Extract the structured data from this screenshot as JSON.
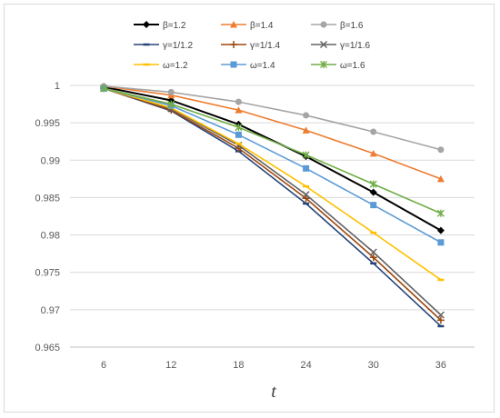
{
  "chart_data": {
    "type": "line",
    "title": "",
    "xlabel": "t",
    "ylabel": "",
    "x": [
      6,
      12,
      18,
      24,
      30,
      36
    ],
    "ylim": [
      0.965,
      1.0
    ],
    "yticks": [
      0.965,
      0.97,
      0.975,
      0.98,
      0.985,
      0.99,
      0.995,
      1
    ],
    "ytick_labels": [
      "0.965",
      "0.97",
      "0.975",
      "0.98",
      "0.985",
      "0.99",
      "0.995",
      "1"
    ],
    "grid": "horizontal",
    "legend_placement": "top",
    "series": [
      {
        "name": "β=1.2",
        "color": "#000000",
        "marker": "diamond",
        "values": [
          0.9998,
          0.998,
          0.9948,
          0.9905,
          0.9857,
          0.9806
        ]
      },
      {
        "name": "β=1.4",
        "color": "#ED7D31",
        "marker": "triangle",
        "values": [
          0.9999,
          0.9987,
          0.9967,
          0.994,
          0.9909,
          0.9875
        ]
      },
      {
        "name": "β=1.6",
        "color": "#A5A5A5",
        "marker": "circle",
        "values": [
          0.9999,
          0.9991,
          0.9978,
          0.996,
          0.9938,
          0.9914
        ]
      },
      {
        "name": "γ=1/1.2",
        "color": "#264478",
        "marker": "dash",
        "values": [
          0.9996,
          0.9966,
          0.9912,
          0.9842,
          0.9762,
          0.9678
        ]
      },
      {
        "name": "γ=1/1.4",
        "color": "#9E480E",
        "marker": "plus",
        "values": [
          0.9996,
          0.9967,
          0.9916,
          0.9849,
          0.977,
          0.9686
        ]
      },
      {
        "name": "γ=1/1.6",
        "color": "#636363",
        "marker": "x",
        "values": [
          0.9996,
          0.9969,
          0.992,
          0.9854,
          0.9777,
          0.9693
        ]
      },
      {
        "name": "ω=1.2",
        "color": "#FFC000",
        "marker": "dash",
        "values": [
          0.9996,
          0.997,
          0.9922,
          0.9865,
          0.9803,
          0.974
        ]
      },
      {
        "name": "ω=1.4",
        "color": "#5B9BD5",
        "marker": "square",
        "values": [
          0.9996,
          0.9973,
          0.9934,
          0.9889,
          0.984,
          0.979
        ]
      },
      {
        "name": "ω=1.6",
        "color": "#70AD47",
        "marker": "star",
        "values": [
          0.9996,
          0.9975,
          0.9944,
          0.9907,
          0.9868,
          0.9829
        ]
      }
    ]
  }
}
